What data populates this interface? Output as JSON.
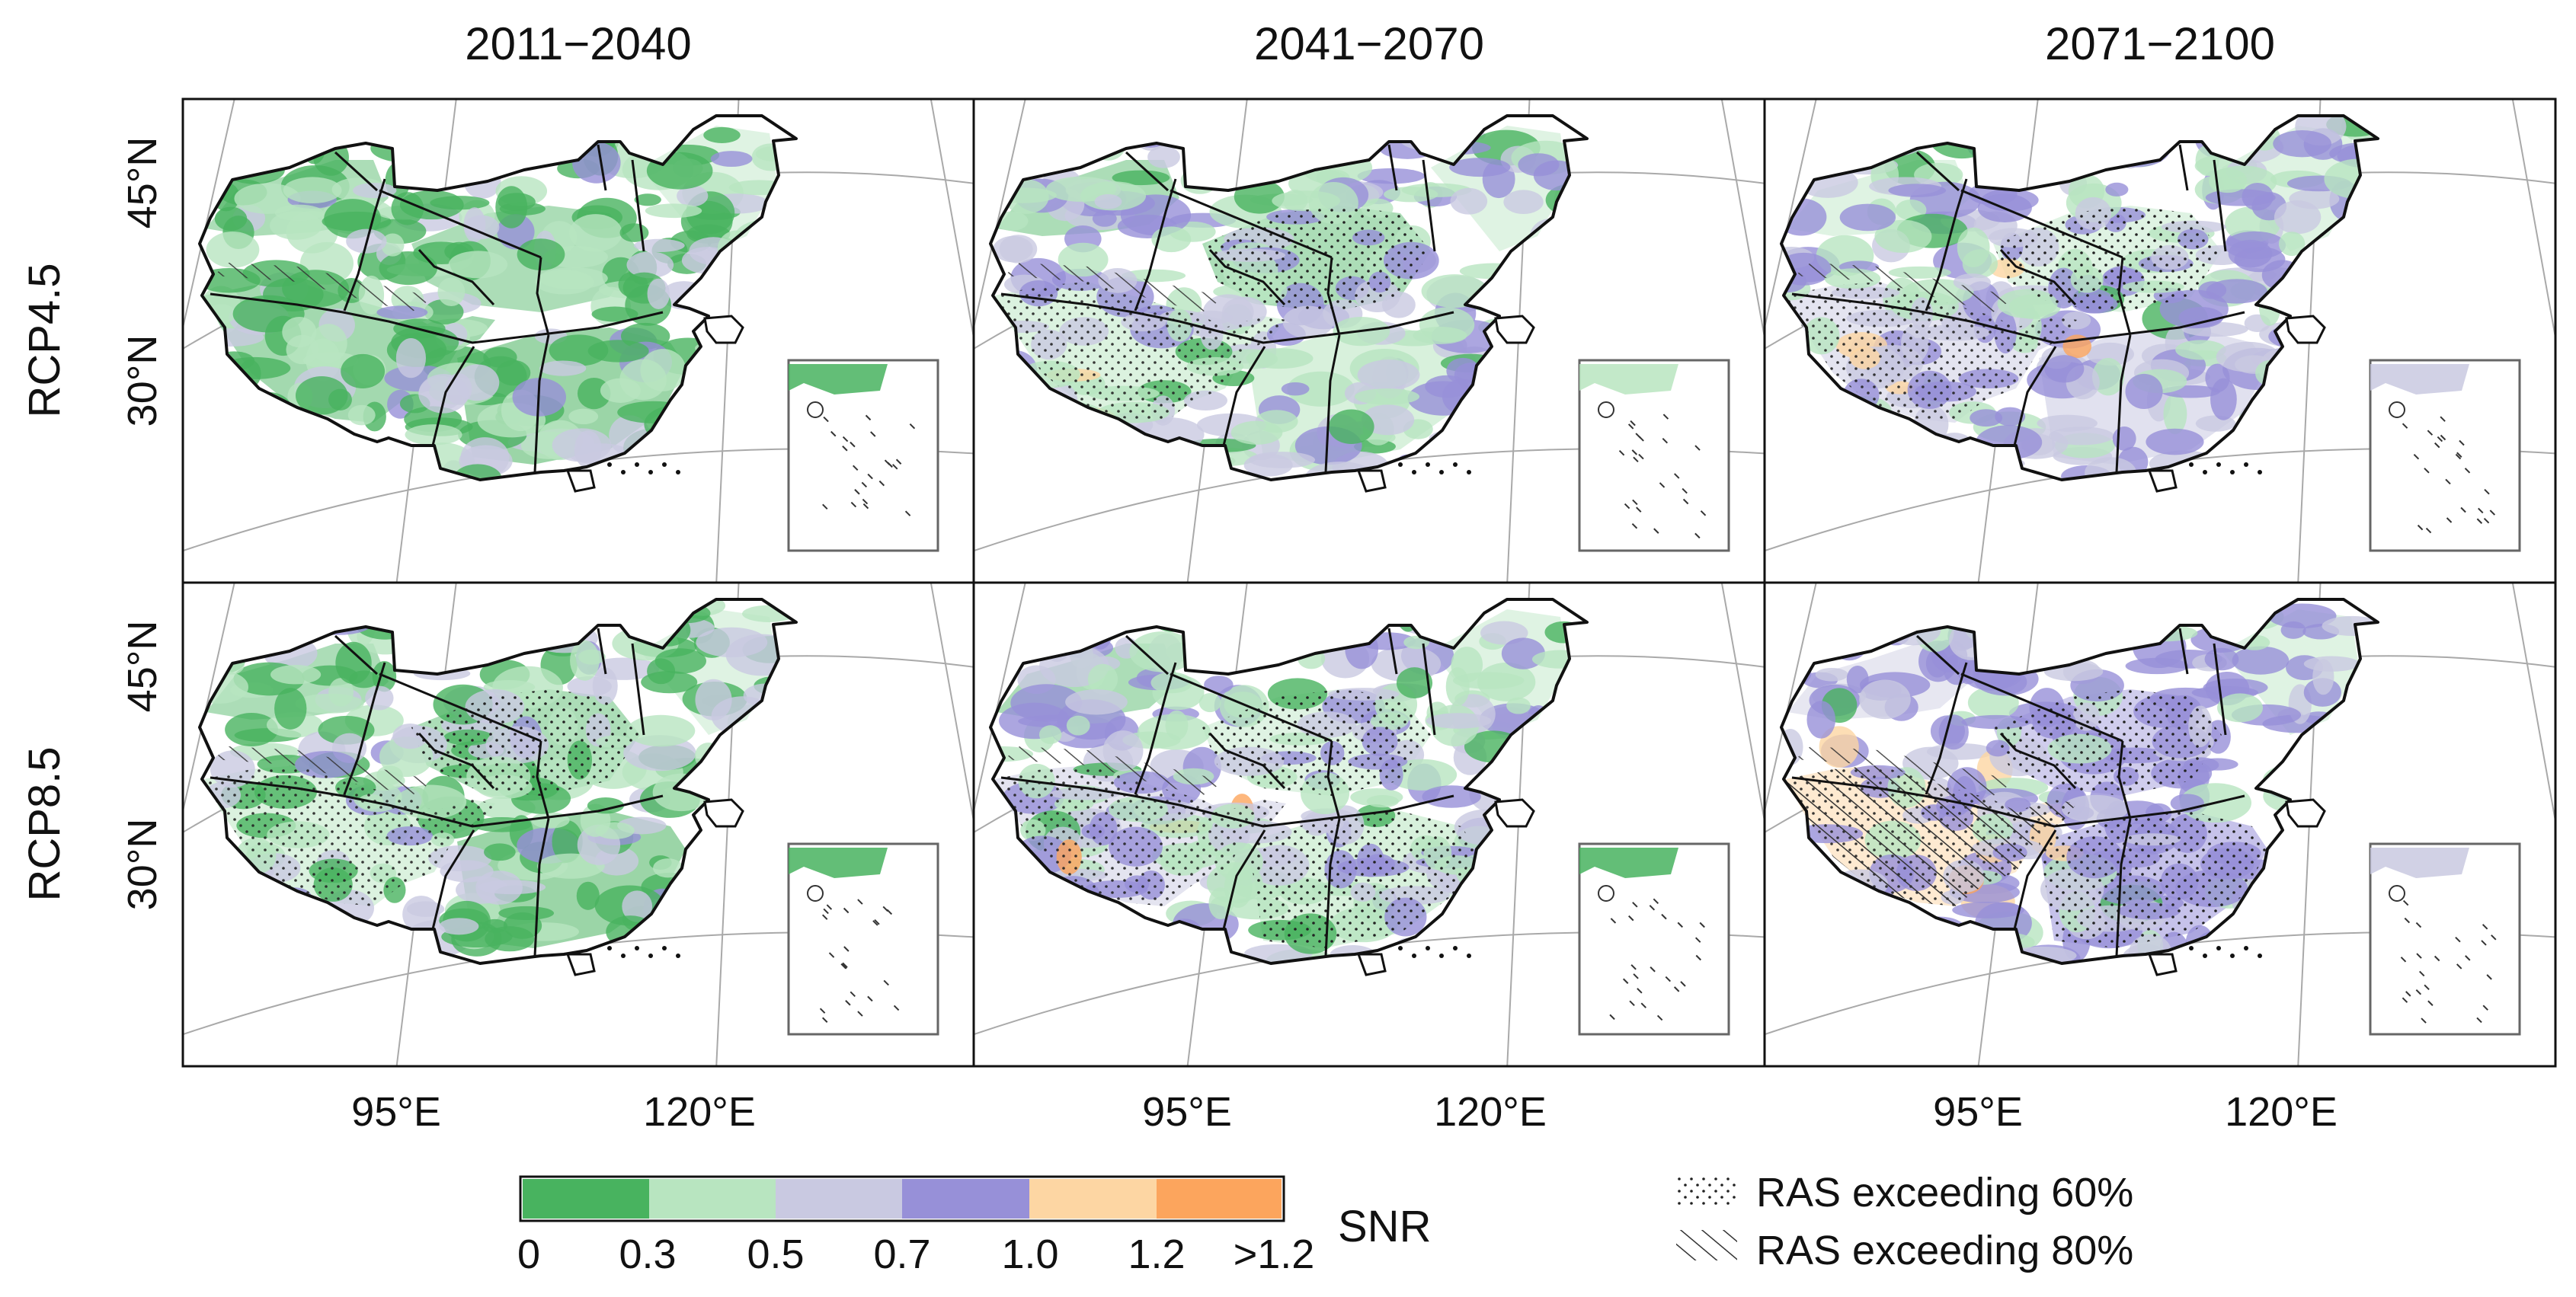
{
  "columns": [
    "2011−2040",
    "2041−2070",
    "2071−2100"
  ],
  "rows": [
    "RCP4.5",
    "RCP8.5"
  ],
  "lat_labels": [
    "45°N",
    "30°N"
  ],
  "lon_labels": [
    "95°E",
    "120°E"
  ],
  "colorbar": {
    "title": "SNR",
    "tick_labels": [
      "0",
      "0.3",
      "0.5",
      "0.7",
      "1.0",
      "1.2",
      ">1.2"
    ],
    "colors": [
      "#48b35f",
      "#b8e5c0",
      "#c9c9e1",
      "#9790d8",
      "#fdd6a3",
      "#fca55d"
    ]
  },
  "legend": {
    "stipple_label": "RAS exceeding 60%",
    "hatch_label": "RAS exceeding 80%"
  },
  "snr_class_mix": [
    [
      [
        0.44,
        0.28,
        0.22,
        0.05,
        0.01,
        0.0
      ],
      [
        0.08,
        0.44,
        0.3,
        0.16,
        0.02,
        0.0
      ],
      [
        0.03,
        0.27,
        0.35,
        0.31,
        0.03,
        0.01
      ]
    ],
    [
      [
        0.42,
        0.28,
        0.23,
        0.06,
        0.01,
        0.0
      ],
      [
        0.06,
        0.36,
        0.31,
        0.23,
        0.03,
        0.01
      ],
      [
        0.01,
        0.12,
        0.23,
        0.45,
        0.1,
        0.09
      ]
    ]
  ]
}
